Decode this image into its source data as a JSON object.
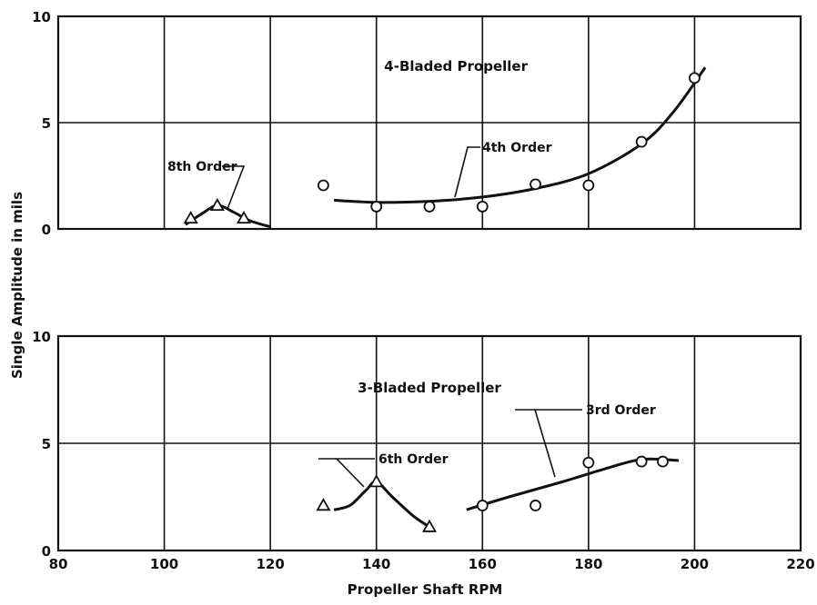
{
  "chart_data": [
    {
      "type": "scatter",
      "panel": "top",
      "title": "4-Bladed Propeller",
      "xlabel": "Propeller Shaft RPM",
      "ylabel": "Single Amplitude in mils",
      "xlim": [
        80,
        220
      ],
      "ylim": [
        0,
        10
      ],
      "xticks": [
        "80",
        "100",
        "120",
        "140",
        "160",
        "180",
        "200",
        "220"
      ],
      "yticks": [
        "0",
        "5",
        "10"
      ],
      "grid": true,
      "series": [
        {
          "name": "8th Order",
          "marker": "triangle",
          "points": [
            {
              "x": 105,
              "y": 0.5
            },
            {
              "x": 110,
              "y": 1.1
            },
            {
              "x": 115,
              "y": 0.5
            }
          ],
          "curve": [
            {
              "x": 104,
              "y": 0.2
            },
            {
              "x": 107,
              "y": 0.7
            },
            {
              "x": 110,
              "y": 1.1
            },
            {
              "x": 113,
              "y": 0.8
            },
            {
              "x": 116,
              "y": 0.4
            },
            {
              "x": 120,
              "y": 0.1
            }
          ]
        },
        {
          "name": "4th Order",
          "marker": "circle",
          "points": [
            {
              "x": 130,
              "y": 2.05
            },
            {
              "x": 140,
              "y": 1.05
            },
            {
              "x": 150,
              "y": 1.05
            },
            {
              "x": 160,
              "y": 1.05
            },
            {
              "x": 170,
              "y": 2.1
            },
            {
              "x": 180,
              "y": 2.05
            },
            {
              "x": 190,
              "y": 4.1
            },
            {
              "x": 200,
              "y": 7.1
            }
          ],
          "curve": [
            {
              "x": 132,
              "y": 1.35
            },
            {
              "x": 140,
              "y": 1.25
            },
            {
              "x": 150,
              "y": 1.3
            },
            {
              "x": 160,
              "y": 1.5
            },
            {
              "x": 170,
              "y": 1.9
            },
            {
              "x": 180,
              "y": 2.6
            },
            {
              "x": 190,
              "y": 4.0
            },
            {
              "x": 196,
              "y": 5.5
            },
            {
              "x": 202,
              "y": 7.6
            }
          ]
        }
      ]
    },
    {
      "type": "scatter",
      "panel": "bottom",
      "title": "3-Bladed Propeller",
      "xlabel": "Propeller Shaft RPM",
      "ylabel": "Single Amplitude in mils",
      "xlim": [
        80,
        220
      ],
      "ylim": [
        0,
        10
      ],
      "xticks": [
        "80",
        "100",
        "120",
        "140",
        "160",
        "180",
        "200",
        "220"
      ],
      "yticks": [
        "0",
        "5",
        "10"
      ],
      "grid": true,
      "series": [
        {
          "name": "6th Order",
          "marker": "triangle",
          "points": [
            {
              "x": 130,
              "y": 2.1
            },
            {
              "x": 140,
              "y": 3.2
            },
            {
              "x": 150,
              "y": 1.1
            }
          ],
          "curve": [
            {
              "x": 132,
              "y": 1.9
            },
            {
              "x": 135,
              "y": 2.1
            },
            {
              "x": 138,
              "y": 2.8
            },
            {
              "x": 140,
              "y": 3.2
            },
            {
              "x": 143,
              "y": 2.5
            },
            {
              "x": 147,
              "y": 1.6
            },
            {
              "x": 150,
              "y": 1.1
            }
          ]
        },
        {
          "name": "3rd Order",
          "marker": "circle",
          "points": [
            {
              "x": 160,
              "y": 2.1
            },
            {
              "x": 170,
              "y": 2.1
            },
            {
              "x": 180,
              "y": 4.1
            },
            {
              "x": 190,
              "y": 4.15
            },
            {
              "x": 194,
              "y": 4.15
            }
          ],
          "curve": [
            {
              "x": 157,
              "y": 1.9
            },
            {
              "x": 165,
              "y": 2.5
            },
            {
              "x": 175,
              "y": 3.2
            },
            {
              "x": 183,
              "y": 3.8
            },
            {
              "x": 190,
              "y": 4.25
            },
            {
              "x": 197,
              "y": 4.2
            }
          ]
        }
      ]
    }
  ],
  "shared": {
    "xlabel": "Propeller Shaft RPM",
    "ylabel": "Single Amplitude in mils"
  }
}
